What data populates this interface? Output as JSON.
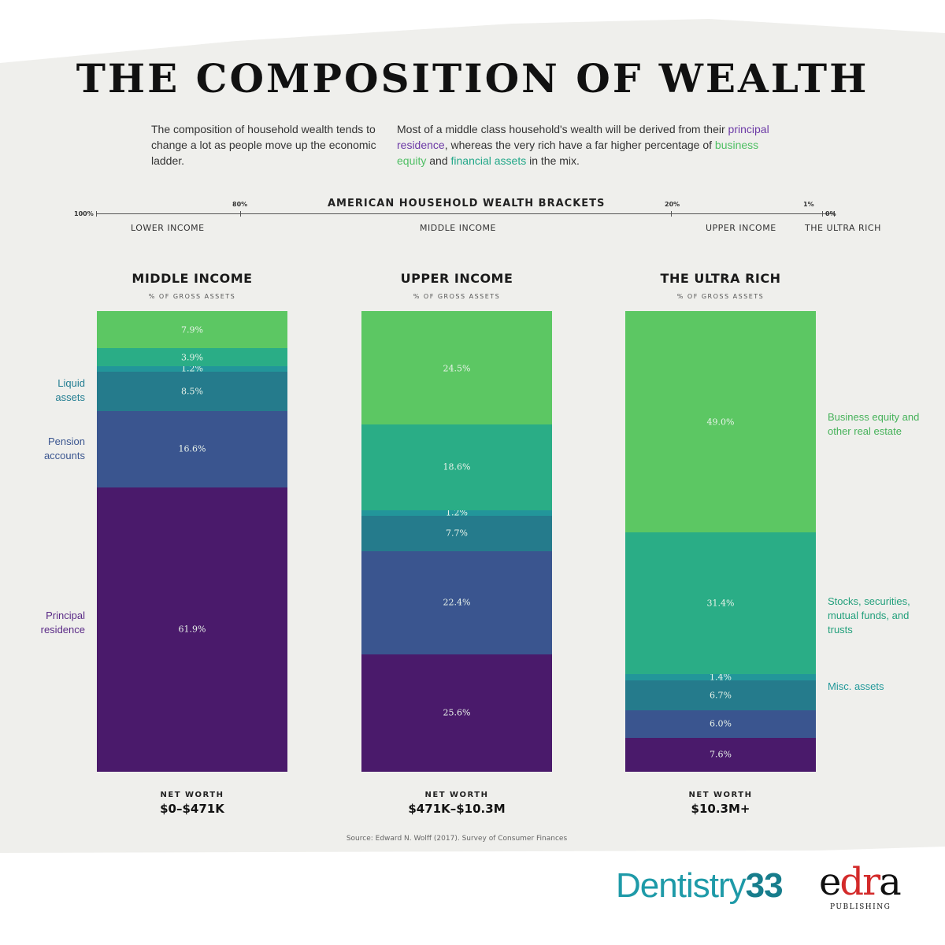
{
  "title": "THE COMPOSITION OF WEALTH",
  "intro": {
    "left": "The composition of household wealth tends to change a lot as people move up the economic ladder.",
    "right_part1": "Most of a middle class household's wealth will be derived from their",
    "right_highlight1": "principal residence",
    "right_part2": ", whereas the very rich have a far higher percentage of",
    "right_highlight2": "business equity",
    "right_part3": "and",
    "right_highlight3": "financial assets",
    "right_part4": "in the mix."
  },
  "brackets": {
    "heading": "AMERICAN HOUSEHOLD WEALTH BRACKETS",
    "ticks": [
      "100%",
      "80%",
      "20%",
      "1%",
      "0%"
    ],
    "labels": [
      "LOWER INCOME",
      "MIDDLE INCOME",
      "UPPER INCOME",
      "THE ULTRA RICH"
    ]
  },
  "colors": {
    "principal_residence": "#4a1a6b",
    "pension_accounts": "#3a558f",
    "liquid_assets": "#257b8c",
    "misc_assets": "#22969a",
    "stocks": "#2aad86",
    "business_equity": "#5cc763"
  },
  "side_labels": {
    "liquid": "Liquid assets",
    "pension": "Pension accounts",
    "principal": "Principal residence",
    "business": "Business equity and other real estate",
    "stocks": "Stocks, securities, mutual funds, and trusts",
    "misc": "Misc. assets"
  },
  "chart_data": {
    "type": "bar",
    "stacked": true,
    "orientation": "vertical",
    "ylim": [
      0,
      100
    ],
    "categories": [
      "MIDDLE INCOME",
      "UPPER INCOME",
      "THE ULTRA RICH"
    ],
    "subtitle": "% OF GROSS ASSETS",
    "net_worth_label": "NET WORTH",
    "net_worth": [
      "$0–$471K",
      "$471K–$10.3M",
      "$10.3M+"
    ],
    "series": [
      {
        "name": "Principal residence",
        "values": [
          61.9,
          25.6,
          7.6
        ]
      },
      {
        "name": "Pension accounts",
        "values": [
          16.6,
          22.4,
          6.0
        ]
      },
      {
        "name": "Liquid assets",
        "values": [
          8.5,
          7.7,
          6.7
        ]
      },
      {
        "name": "Misc. assets",
        "values": [
          1.2,
          1.2,
          1.4
        ]
      },
      {
        "name": "Stocks, securities, mutual funds, and trusts",
        "values": [
          3.9,
          18.6,
          31.4
        ]
      },
      {
        "name": "Business equity and other real estate",
        "values": [
          7.9,
          24.5,
          49.0
        ]
      }
    ],
    "value_labels": [
      [
        "61.9%",
        "16.6%",
        "8.5%",
        "1.2%",
        "3.9%",
        "7.9%"
      ],
      [
        "25.6%",
        "22.4%",
        "7.7%",
        "1.2%",
        "18.6%",
        "24.5%"
      ],
      [
        "7.6%",
        "6.0%",
        "6.7%",
        "1.4%",
        "31.4%",
        "49.0%"
      ]
    ],
    "source": "Source: Edward N. Wolff (2017). Survey of Consumer Finances"
  },
  "logos": {
    "dentistry": "Dentistry",
    "dentistry_num": "33",
    "edra_e": "e",
    "edra_dr": "dr",
    "edra_a": "a",
    "publishing": "PUBLISHING"
  }
}
